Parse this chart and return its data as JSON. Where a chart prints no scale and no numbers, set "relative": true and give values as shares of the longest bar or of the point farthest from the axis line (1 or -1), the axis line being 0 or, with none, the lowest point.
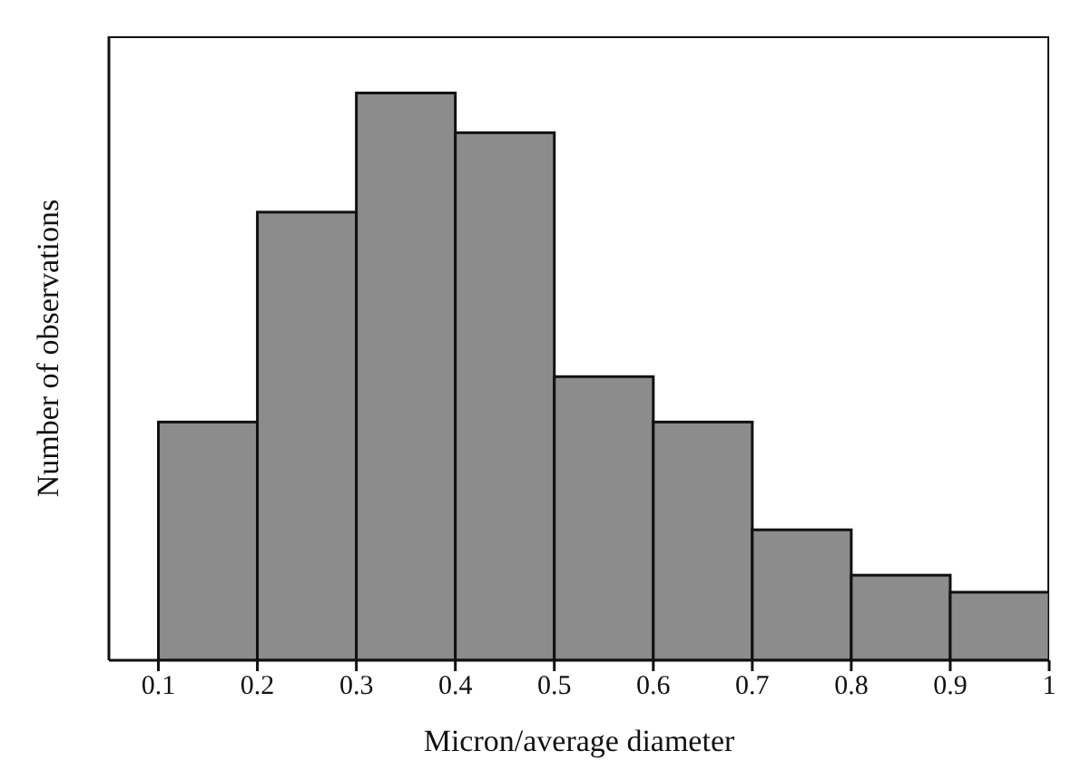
{
  "chart_data": {
    "type": "bar",
    "xlabel": "Micron/average diameter",
    "ylabel": "Number of observations",
    "relative": true,
    "x": [
      0.15,
      0.25,
      0.35,
      0.45,
      0.55,
      0.65,
      0.75,
      0.85,
      0.95
    ],
    "values": [
      0.42,
      0.79,
      1,
      0.93,
      0.5,
      0.42,
      0.23,
      0.15,
      0.12
    ],
    "color": "#8c8c8c",
    "xlim": [
      0.05,
      1
    ],
    "xticks": [
      0.1,
      0.2,
      0.3,
      0.4,
      0.5,
      0.6,
      0.7,
      0.8,
      0.9,
      {
        "value": 1,
        "label": "1"
      }
    ],
    "grid": false
  }
}
